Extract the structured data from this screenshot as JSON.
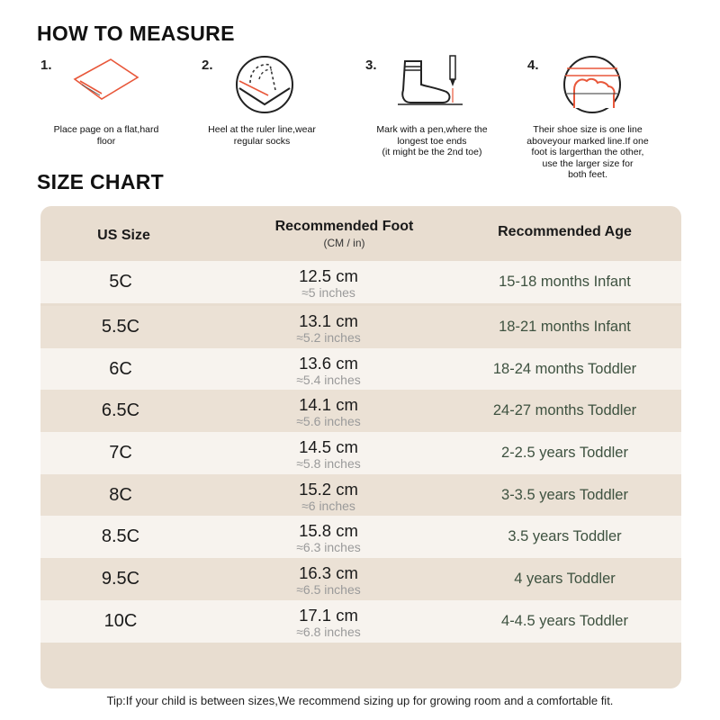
{
  "how_to_measure": {
    "title": "HOW TO MEASURE",
    "steps": [
      {
        "num": "1.",
        "text": "Place page on a flat,hard\nfloor",
        "icon": "paper-on-floor-icon"
      },
      {
        "num": "2.",
        "text": "Heel at the ruler line,wear\nregular socks",
        "icon": "heel-on-ruler-icon"
      },
      {
        "num": "3.",
        "text": "Mark with a pen,where the\nlongest toe ends\n(it might be the 2nd toe)",
        "icon": "sock-and-pen-icon"
      },
      {
        "num": "4.",
        "text": "Their shoe size is one line\naboveyour marked line.If one\nfoot is largerthan the other,\nuse the larger size for\nboth feet.",
        "icon": "toe-over-line-icon"
      }
    ]
  },
  "size_chart": {
    "title": "SIZE CHART",
    "headers": {
      "us_size": "US Size",
      "foot": "Recommended Foot",
      "foot_units": "(CM / in)",
      "age": "Recommended Age"
    },
    "rows": [
      {
        "size": "5C",
        "cm": "12.5 cm",
        "inches": "≈5 inches",
        "age": "15-18 months Infant"
      },
      {
        "size": "5.5C",
        "cm": "13.1 cm",
        "inches": "≈5.2 inches",
        "age": "18-21 months Infant"
      },
      {
        "size": "6C",
        "cm": "13.6 cm",
        "inches": "≈5.4 inches",
        "age": "18-24 months Toddler"
      },
      {
        "size": "6.5C",
        "cm": "14.1 cm",
        "inches": "≈5.6 inches",
        "age": "24-27 months Toddler"
      },
      {
        "size": "7C",
        "cm": "14.5 cm",
        "inches": "≈5.8 inches",
        "age": "2-2.5 years Toddler"
      },
      {
        "size": "8C",
        "cm": "15.2 cm",
        "inches": "≈6 inches",
        "age": "3-3.5 years Toddler"
      },
      {
        "size": "8.5C",
        "cm": "15.8 cm",
        "inches": "≈6.3 inches",
        "age": "3.5 years Toddler"
      },
      {
        "size": "9.5C",
        "cm": "16.3 cm",
        "inches": "≈6.5 inches",
        "age": "4 years Toddler"
      },
      {
        "size": "10C",
        "cm": "17.1 cm",
        "inches": "≈6.8 inches",
        "age": "4-4.5 years Toddler"
      }
    ]
  },
  "tip": "Tip:If your child is between sizes,We recommend sizing up for growing room and a comfortable fit.",
  "colors": {
    "accent": "#e8573a",
    "chart_bg": "#e8ddd0",
    "row_light": "#f7f3ee",
    "row_dark": "#ebe1d5",
    "age_text": "#3e5240"
  }
}
